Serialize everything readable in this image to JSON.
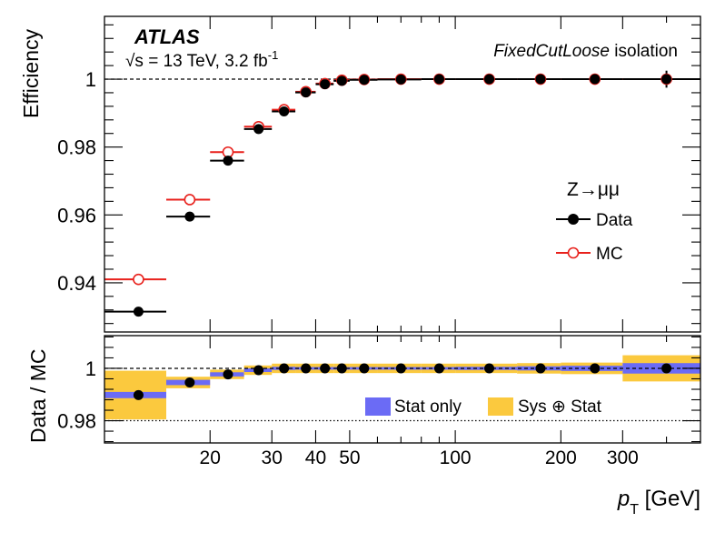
{
  "experiment_label": "ATLAS",
  "energy_label": {
    "sqrt": "√s",
    "rest": " = 13 TeV, 3.2 fb",
    "sup": "-1"
  },
  "isolation_label": {
    "italic": "FixedCutLoose",
    "rest": " isolation"
  },
  "xlabel": {
    "main": "p",
    "sub": "T",
    "unit": " [GeV]"
  },
  "colors": {
    "data": "#000000",
    "mc": "#e8211c",
    "stat": "#6b6bf5",
    "sys": "#fbc93e"
  },
  "chart_data": [
    {
      "type": "scatter",
      "name": "efficiency-panel",
      "ylabel": "Efficiency",
      "xscale": "log",
      "xlim": [
        10,
        500
      ],
      "ylim": [
        0.9255,
        1.0185
      ],
      "yticks": [
        0.94,
        0.96,
        0.98,
        1
      ],
      "yticklabels": [
        "0.94",
        "0.96",
        "0.98",
        "1"
      ],
      "legend_title": "Z→μμ",
      "legend_position": "right",
      "reference_line": 1,
      "bins": [
        [
          10,
          15
        ],
        [
          15,
          20
        ],
        [
          20,
          25
        ],
        [
          25,
          30
        ],
        [
          30,
          35
        ],
        [
          35,
          40
        ],
        [
          40,
          45
        ],
        [
          45,
          50
        ],
        [
          50,
          60
        ],
        [
          60,
          80
        ],
        [
          80,
          100
        ],
        [
          100,
          150
        ],
        [
          150,
          200
        ],
        [
          200,
          300
        ],
        [
          300,
          500
        ]
      ],
      "centers": [
        12.5,
        17.5,
        22.5,
        27.5,
        32.5,
        37.5,
        42.5,
        47.5,
        55,
        70,
        90,
        125,
        175,
        250,
        400
      ],
      "series": [
        {
          "name": "Data",
          "marker": "filled-circle",
          "color": "#000000",
          "values": [
            0.9315,
            0.9595,
            0.976,
            0.9853,
            0.9905,
            0.9961,
            0.9985,
            0.9995,
            0.9998,
            0.9999,
            1.0,
            1.0,
            1.0,
            1.0,
            1.0
          ],
          "errors": [
            0,
            0,
            0,
            0,
            0,
            0,
            0,
            0,
            0,
            0,
            0,
            0,
            0,
            0,
            0.0025
          ]
        },
        {
          "name": "MC",
          "marker": "open-circle",
          "color": "#e8211c",
          "values": [
            0.941,
            0.9645,
            0.9785,
            0.986,
            0.991,
            0.9963,
            0.9987,
            0.9997,
            0.9999,
            1.0,
            1.0,
            1.0,
            1.0,
            1.0,
            1.0
          ]
        }
      ]
    },
    {
      "type": "scatter",
      "name": "ratio-panel",
      "ylabel": "Data / MC",
      "xscale": "log",
      "xlim": [
        10,
        500
      ],
      "ylim": [
        0.9715,
        1.0125
      ],
      "yticks": [
        0.98,
        1
      ],
      "yticklabels": [
        "0.98",
        "1"
      ],
      "xticks": [
        20,
        30,
        40,
        50,
        100,
        200,
        300
      ],
      "xticklabels": [
        "20",
        "30",
        "40",
        "50",
        "100",
        "200",
        "300"
      ],
      "reference_lines": [
        1,
        0.98
      ],
      "bins": [
        [
          10,
          15
        ],
        [
          15,
          20
        ],
        [
          20,
          25
        ],
        [
          25,
          30
        ],
        [
          30,
          35
        ],
        [
          35,
          40
        ],
        [
          40,
          45
        ],
        [
          45,
          50
        ],
        [
          50,
          60
        ],
        [
          60,
          80
        ],
        [
          80,
          100
        ],
        [
          100,
          150
        ],
        [
          150,
          200
        ],
        [
          200,
          300
        ],
        [
          300,
          500
        ]
      ],
      "centers": [
        12.5,
        17.5,
        22.5,
        27.5,
        32.5,
        37.5,
        42.5,
        47.5,
        55,
        70,
        90,
        125,
        175,
        250,
        400
      ],
      "ratio": [
        0.9898,
        0.9946,
        0.9977,
        0.9993,
        1.0,
        1.0,
        1.0,
        1.0,
        1.0,
        1.0,
        1.0,
        1.0,
        1.0,
        1.0,
        1.0
      ],
      "stat_band": [
        0.0012,
        0.001,
        0.0008,
        0.0007,
        0.0006,
        0.0005,
        0.0005,
        0.0005,
        0.0005,
        0.0005,
        0.0005,
        0.0006,
        0.0008,
        0.001,
        0.002
      ],
      "sys_stat_band": [
        0.0093,
        0.0022,
        0.0018,
        0.0018,
        0.0018,
        0.0018,
        0.0018,
        0.0018,
        0.0018,
        0.0018,
        0.0018,
        0.0018,
        0.002,
        0.0022,
        0.005
      ],
      "legend": [
        "Stat only",
        "Sys ⊕ Stat"
      ],
      "legend_position": "bottom-right"
    }
  ]
}
